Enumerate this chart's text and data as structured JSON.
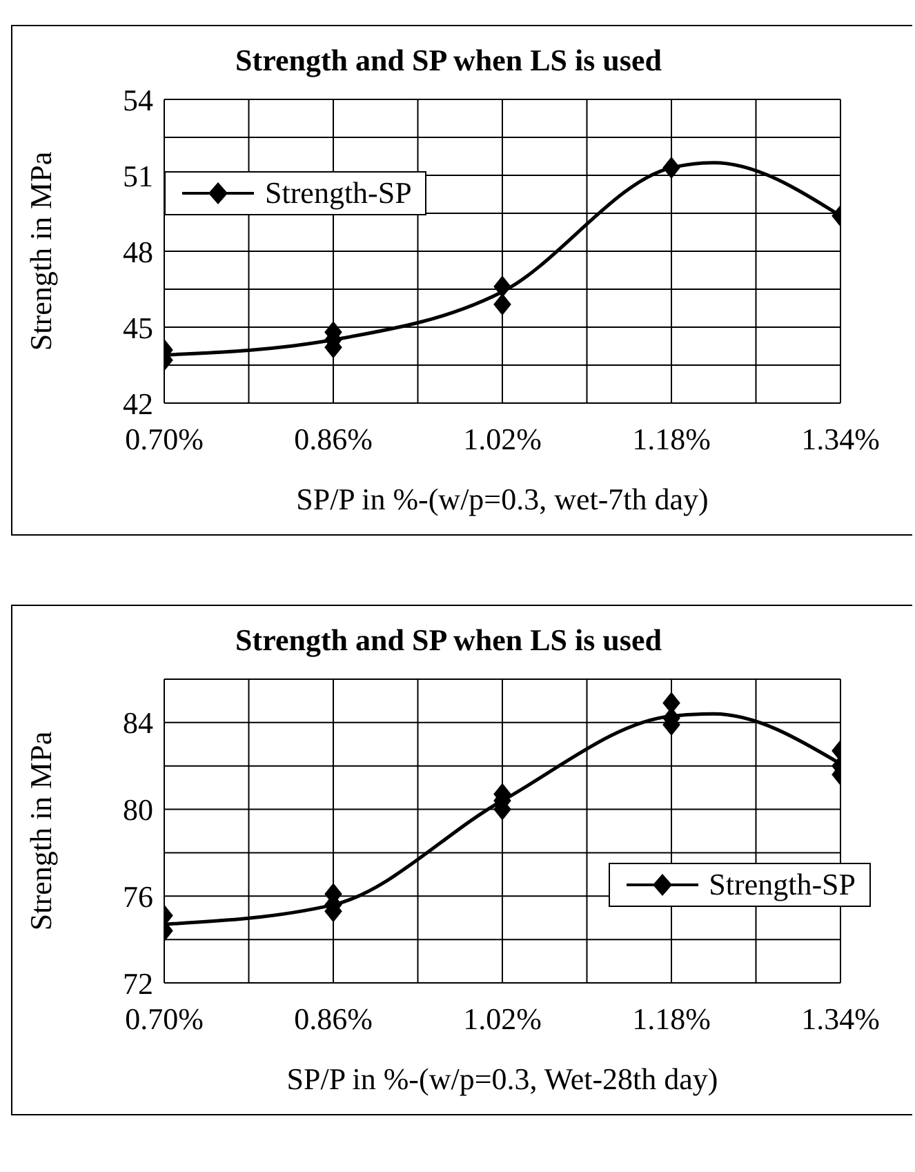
{
  "chart_data": [
    {
      "type": "scatter",
      "title": "Strength and SP when LS is used",
      "xlabel": "SP/P in %-(w/p=0.3, wet-7th day)",
      "ylabel": "Strength in MPa",
      "xlim": [
        0.7,
        1.34
      ],
      "xticks": [
        {
          "value": 0.7,
          "label": "0.70%"
        },
        {
          "value": 0.78,
          "label": null
        },
        {
          "value": 0.86,
          "label": "0.86%"
        },
        {
          "value": 0.94,
          "label": null
        },
        {
          "value": 1.02,
          "label": "1.02%"
        },
        {
          "value": 1.1,
          "label": null
        },
        {
          "value": 1.18,
          "label": "1.18%"
        },
        {
          "value": 1.26,
          "label": null
        },
        {
          "value": 1.34,
          "label": "1.34%"
        }
      ],
      "ylim": [
        42,
        54
      ],
      "yticks": [
        42,
        {
          "value": 43.5,
          "label": null
        },
        45,
        {
          "value": 46.5,
          "label": null
        },
        48,
        {
          "value": 49.5,
          "label": null
        },
        51,
        {
          "value": 52.5,
          "label": null
        },
        54
      ],
      "grid": true,
      "legend": "top left",
      "series": [
        {
          "name": "Strength-SP",
          "type": "scatter",
          "color": "#000000",
          "marker": "diamond",
          "x": [
            0.7,
            0.7,
            0.86,
            0.86,
            0.86,
            1.02,
            1.02,
            1.18,
            1.34
          ],
          "values": [
            44.1,
            43.7,
            44.8,
            44.5,
            44.2,
            46.6,
            45.9,
            51.3,
            49.4
          ]
        },
        {
          "type": "line",
          "color": "#000000",
          "marker": "none",
          "x": [
            0.7,
            0.86,
            1.02,
            1.18,
            1.22,
            1.34
          ],
          "values": [
            43.9,
            44.5,
            46.4,
            51.3,
            51.5,
            49.4
          ]
        }
      ]
    },
    {
      "type": "scatter",
      "title": "Strength and SP when LS is used",
      "xlabel": "SP/P in %-(w/p=0.3, Wet-28th day)",
      "ylabel": "Strength in MPa",
      "xlim": [
        0.7,
        1.34
      ],
      "xticks": [
        {
          "value": 0.7,
          "label": "0.70%"
        },
        {
          "value": 0.78,
          "label": null
        },
        {
          "value": 0.86,
          "label": "0.86%"
        },
        {
          "value": 0.94,
          "label": null
        },
        {
          "value": 1.02,
          "label": "1.02%"
        },
        {
          "value": 1.1,
          "label": null
        },
        {
          "value": 1.18,
          "label": "1.18%"
        },
        {
          "value": 1.26,
          "label": null
        },
        {
          "value": 1.34,
          "label": "1.34%"
        }
      ],
      "ylim": [
        72,
        86
      ],
      "yticks": [
        72,
        {
          "value": 74,
          "label": null
        },
        76,
        {
          "value": 78,
          "label": null
        },
        80,
        {
          "value": 82,
          "label": null
        },
        84,
        {
          "value": 86,
          "label": null
        }
      ],
      "grid": true,
      "legend": "bottom right",
      "series": [
        {
          "name": "Strength-SP",
          "type": "scatter",
          "color": "#000000",
          "marker": "diamond",
          "x": [
            0.7,
            0.7,
            0.86,
            0.86,
            0.86,
            1.02,
            1.02,
            1.02,
            1.18,
            1.18,
            1.18,
            1.34,
            1.34,
            1.34
          ],
          "values": [
            75.1,
            74.4,
            76.1,
            75.6,
            75.3,
            80.7,
            80.4,
            80.0,
            84.9,
            84.2,
            83.9,
            82.7,
            82.0,
            81.6
          ]
        },
        {
          "type": "line",
          "color": "#000000",
          "marker": "none",
          "x": [
            0.7,
            0.86,
            1.02,
            1.18,
            1.22,
            1.34
          ],
          "values": [
            74.7,
            75.6,
            80.4,
            84.3,
            84.4,
            82.1
          ]
        }
      ]
    }
  ]
}
